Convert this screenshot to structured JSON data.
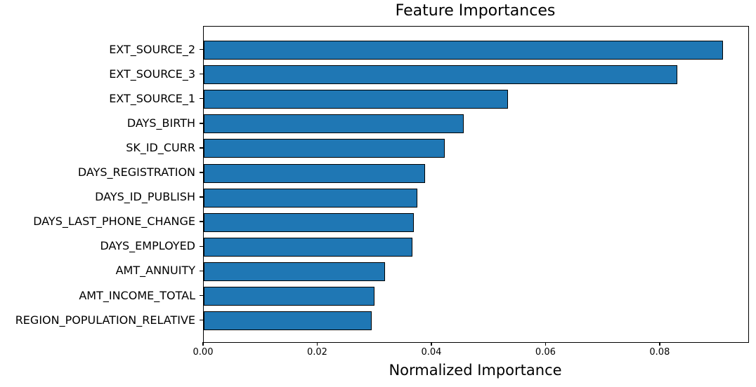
{
  "chart_data": {
    "type": "bar",
    "orientation": "horizontal",
    "title": "Feature Importances",
    "xlabel": "Normalized Importance",
    "ylabel": "",
    "categories": [
      "EXT_SOURCE_2",
      "EXT_SOURCE_3",
      "EXT_SOURCE_1",
      "DAYS_BIRTH",
      "SK_ID_CURR",
      "DAYS_REGISTRATION",
      "DAYS_ID_PUBLISH",
      "DAYS_LAST_PHONE_CHANGE",
      "DAYS_EMPLOYED",
      "AMT_ANNUITY",
      "AMT_INCOME_TOTAL",
      "REGION_POPULATION_RELATIVE"
    ],
    "values": [
      0.091,
      0.083,
      0.0533,
      0.0455,
      0.0422,
      0.0388,
      0.0374,
      0.0368,
      0.0366,
      0.0318,
      0.0299,
      0.0294
    ],
    "xlim": [
      0,
      0.0954
    ],
    "xticks": [
      0.0,
      0.02,
      0.04,
      0.06,
      0.08
    ],
    "xtick_labels": [
      "0.00",
      "0.02",
      "0.04",
      "0.06",
      "0.08"
    ],
    "grid": false,
    "legend": null,
    "bar_color": "#1f77b4",
    "bar_edge_color": "#000000",
    "background_color": "#ffffff"
  }
}
